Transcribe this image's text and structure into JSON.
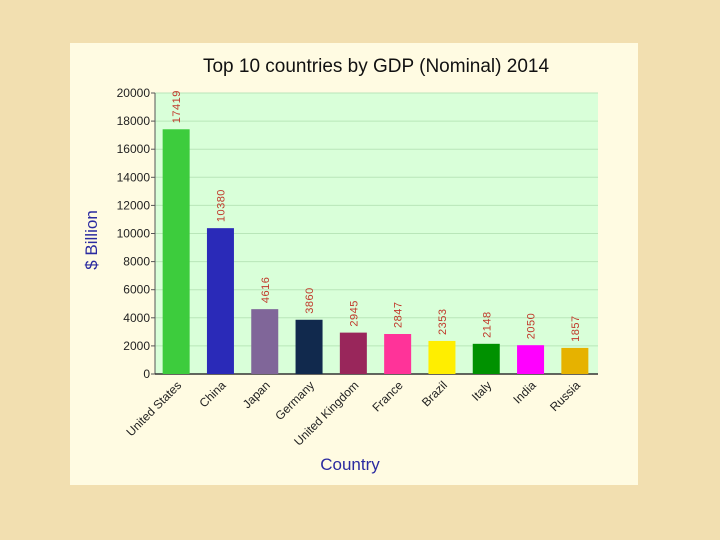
{
  "colors": {
    "page_background": "#f2dfb0",
    "card_background": "#fffbe2",
    "plot_background": "#d9ffd9",
    "gridline": "#b9e6b9",
    "data_label": "#c0392b",
    "axis_title": "#2a2aa0"
  },
  "chart_data": {
    "type": "bar",
    "title": "Top 10 countries by GDP (Nominal) 2014",
    "xlabel": "Country",
    "ylabel": "$ Billion",
    "ylim": [
      0,
      20000
    ],
    "yticks": [
      0,
      2000,
      4000,
      6000,
      8000,
      10000,
      12000,
      14000,
      16000,
      18000,
      20000
    ],
    "grid": true,
    "legend": "none",
    "categories": [
      "United States",
      "China",
      "Japan",
      "Germany",
      "United Kingdom",
      "France",
      "Brazil",
      "Italy",
      "India",
      "Russia"
    ],
    "values": [
      17419,
      10380,
      4616,
      3860,
      2945,
      2847,
      2353,
      2148,
      2050,
      1857
    ],
    "bar_colors": [
      "#3dcc3d",
      "#2a2ab8",
      "#806699",
      "#11294d",
      "#99265b",
      "#ff3399",
      "#ffee00",
      "#009100",
      "#ff00ff",
      "#e6b200"
    ]
  }
}
